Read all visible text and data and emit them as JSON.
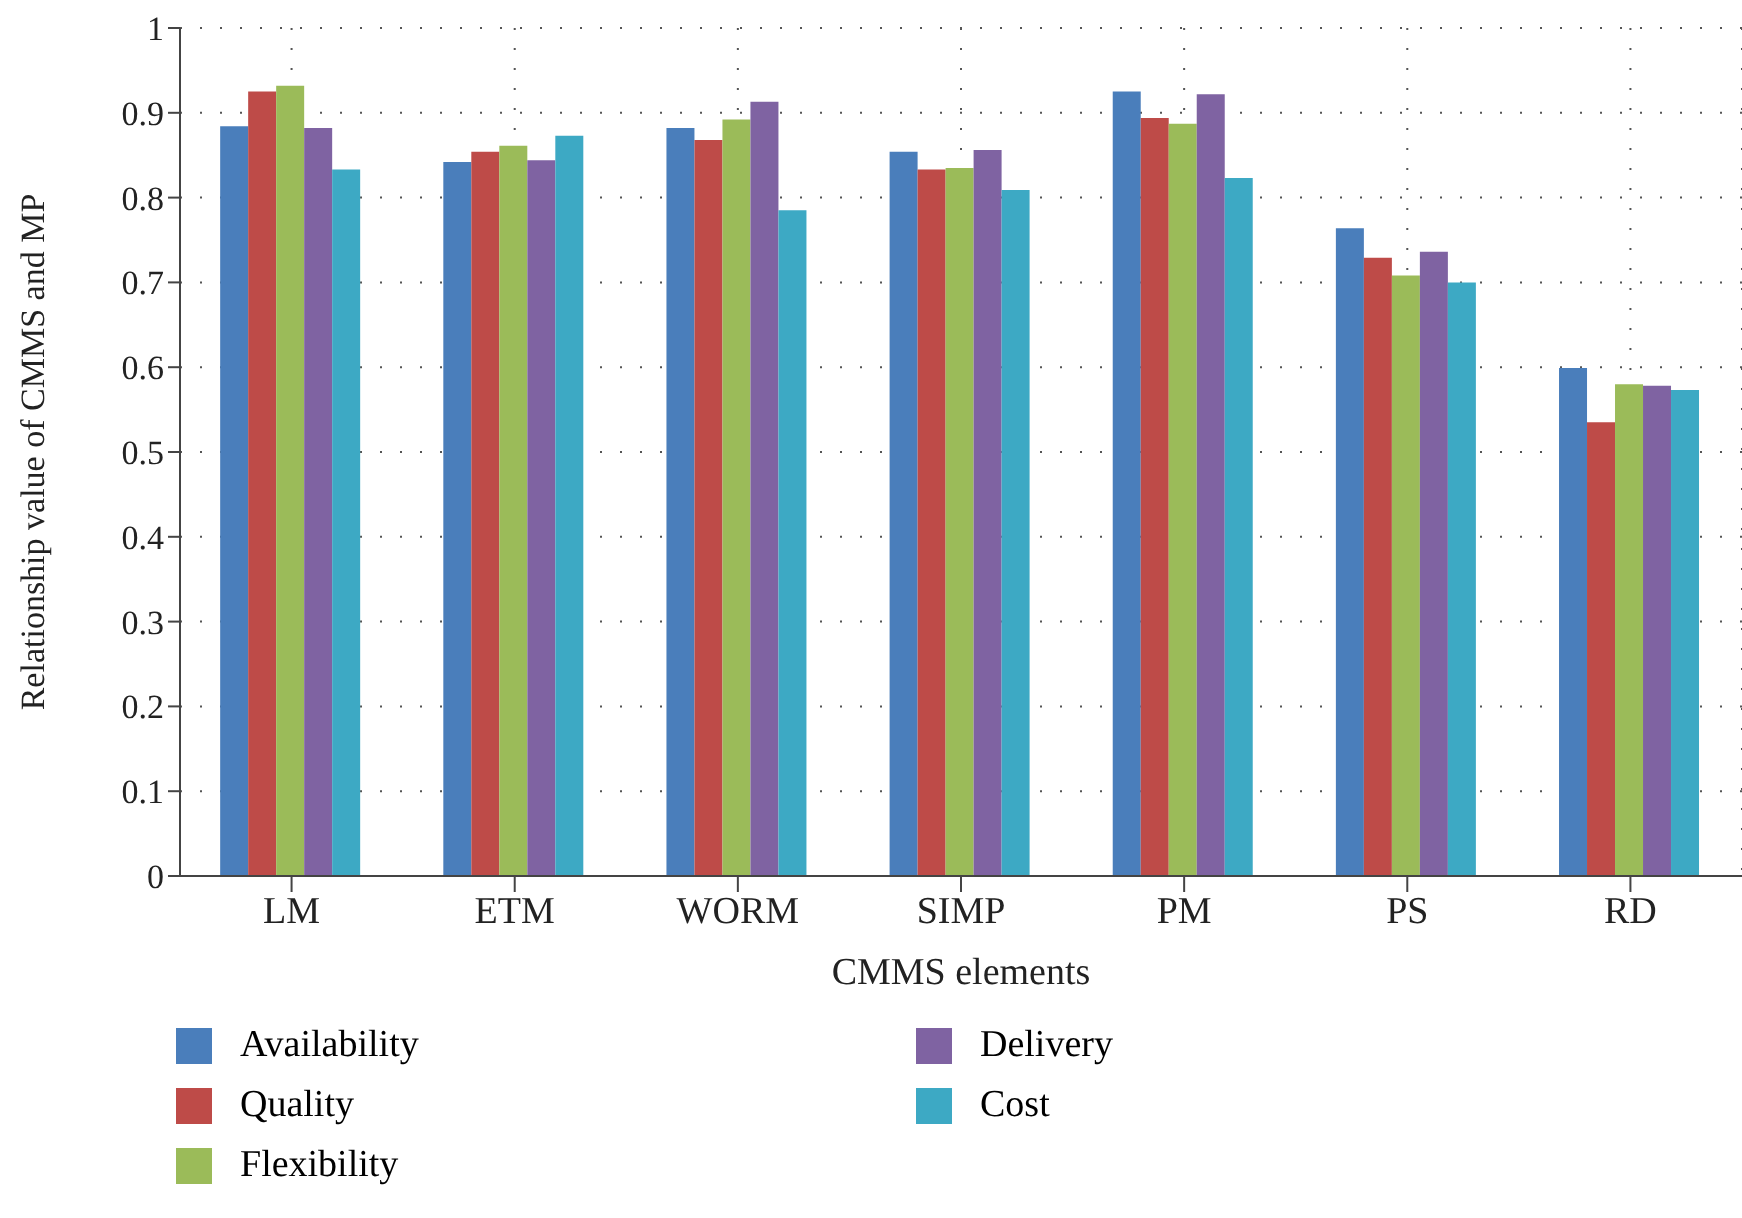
{
  "chart_data": {
    "type": "bar",
    "xlabel": "CMMS elements",
    "ylabel": "Relationship value of CMMS and MP",
    "categories": [
      "LM",
      "ETM",
      "WORM",
      "SIMP",
      "PM",
      "PS",
      "RD"
    ],
    "series": [
      {
        "name": "Availability",
        "color": "#4a7ebb",
        "values": [
          0.884,
          0.842,
          0.882,
          0.854,
          0.925,
          0.764,
          0.599
        ]
      },
      {
        "name": "Quality",
        "color": "#be4b48",
        "values": [
          0.925,
          0.854,
          0.868,
          0.833,
          0.894,
          0.729,
          0.535
        ]
      },
      {
        "name": "Flexibility",
        "color": "#9bbb59",
        "values": [
          0.932,
          0.861,
          0.892,
          0.835,
          0.887,
          0.708,
          0.58
        ]
      },
      {
        "name": "Delivery",
        "color": "#7f63a2",
        "values": [
          0.882,
          0.844,
          0.913,
          0.856,
          0.922,
          0.736,
          0.578
        ]
      },
      {
        "name": "Cost",
        "color": "#3da9c4",
        "values": [
          0.833,
          0.873,
          0.785,
          0.809,
          0.823,
          0.7,
          0.573
        ]
      }
    ],
    "ylim": [
      0,
      1
    ],
    "yticks": [
      0,
      0.1,
      0.2,
      0.3,
      0.4,
      0.5,
      0.6,
      0.7,
      0.8,
      0.9,
      1
    ],
    "grid": true,
    "legend": "bottom left"
  }
}
